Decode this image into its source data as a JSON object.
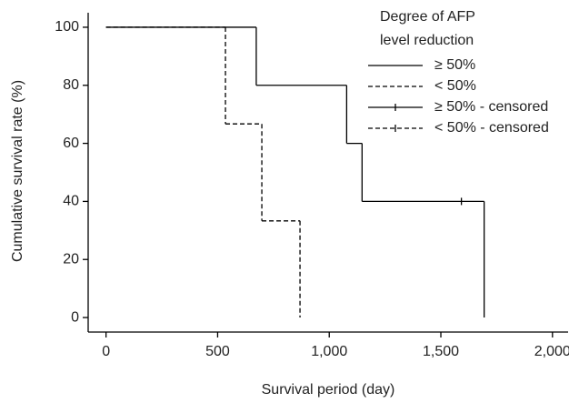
{
  "chart_data": {
    "type": "step",
    "xlabel": "Survival period (day)",
    "ylabel": "Cumulative survival rate (%)",
    "xlim": [
      -80,
      2070
    ],
    "ylim": [
      -5,
      105
    ],
    "xticks": [
      0,
      500,
      {
        "value": 1000,
        "label": "1,000"
      },
      {
        "value": 1500,
        "label": "1,500"
      },
      {
        "value": 2000,
        "label": "2,000"
      }
    ],
    "yticks": [
      0,
      20,
      40,
      60,
      80,
      100
    ],
    "legend_title": [
      "Degree of AFP",
      "level reduction"
    ],
    "series": [
      {
        "name": "≥ 50%",
        "color": "#000000",
        "style": "solid",
        "x": [
          0,
          673,
          1078,
          1147,
          1694
        ],
        "values": [
          100,
          80,
          60,
          40,
          0
        ]
      },
      {
        "name": "< 50%",
        "color": "#000000",
        "style": "dashed",
        "x": [
          0,
          535,
          698,
          869
        ],
        "values": [
          100,
          66.7,
          33.3,
          0
        ]
      },
      {
        "name": "≥ 50% - censored",
        "color": "#000000",
        "style": "solid",
        "censored": true,
        "x": [
          1592
        ],
        "values": [
          40
        ]
      },
      {
        "name": "< 50% - censored",
        "color": "#000000",
        "style": "dashed",
        "censored": true,
        "x": [],
        "values": []
      }
    ]
  }
}
